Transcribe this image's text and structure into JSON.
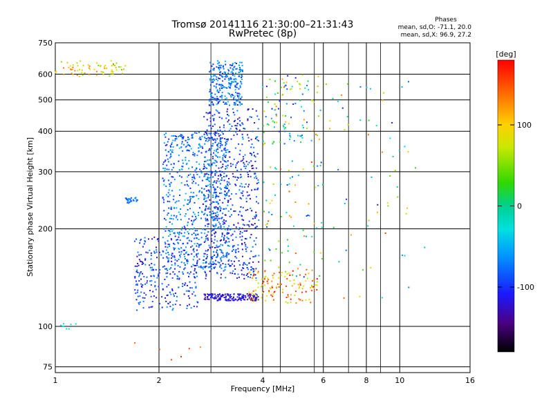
{
  "chart_data": {
    "type": "scatter",
    "title": "Tromsø 20141116 21:30:00–21:31:43",
    "subtitle": "RwPretec (8p)",
    "xlabel": "Frequency [MHz]",
    "ylabel": "Stationary phase Virtual Height [km]",
    "xscale": "log",
    "yscale": "log",
    "xlim": [
      1,
      16
    ],
    "ylim": [
      72,
      750
    ],
    "xticks": [
      "1",
      "2",
      "4",
      "6",
      "8",
      "10",
      "16"
    ],
    "xtick_values": [
      1,
      2,
      4,
      6,
      8,
      10,
      16
    ],
    "yticks": [
      "75",
      "100",
      "200",
      "300",
      "400",
      "500",
      "600",
      "750"
    ],
    "ytick_values": [
      75,
      100,
      200,
      300,
      400,
      500,
      600,
      750
    ],
    "grid": true,
    "colorbar": {
      "label": "[deg]",
      "range": [
        -180,
        180
      ],
      "ticks": [
        "100",
        "0",
        "-100"
      ],
      "tick_values": [
        100,
        0,
        -100
      ]
    },
    "stats": {
      "heading": "Phases",
      "line1": "mean, sd,O: -71.1, 20.0",
      "line2": "mean, sd,X: 96.9, 27.2"
    },
    "clusters": [
      {
        "x": [
          1.0,
          1.6
        ],
        "y": [
          590,
          660
        ],
        "n": 70,
        "phase": [
          40,
          140
        ]
      },
      {
        "x": [
          2.8,
          3.5
        ],
        "y": [
          480,
          660
        ],
        "n": 260,
        "phase": [
          -110,
          -40
        ]
      },
      {
        "x": [
          2.05,
          3.2
        ],
        "y": [
          150,
          400
        ],
        "n": 700,
        "phase": [
          -110,
          -40
        ]
      },
      {
        "x": [
          2.7,
          3.9
        ],
        "y": [
          140,
          470
        ],
        "n": 600,
        "phase": [
          -140,
          -60
        ]
      },
      {
        "x": [
          1.7,
          2.6
        ],
        "y": [
          112,
          190
        ],
        "n": 280,
        "phase": [
          -130,
          -60
        ]
      },
      {
        "x": [
          2.7,
          3.9
        ],
        "y": [
          120,
          126
        ],
        "n": 160,
        "phase": [
          -140,
          -100
        ]
      },
      {
        "x": [
          3.6,
          5.8
        ],
        "y": [
          118,
          150
        ],
        "n": 130,
        "phase": [
          60,
          180
        ]
      },
      {
        "x": [
          4.0,
          5.9
        ],
        "y": [
          360,
          600
        ],
        "n": 110,
        "phase": [
          -120,
          150
        ]
      },
      {
        "x": [
          4.0,
          6.0
        ],
        "y": [
          140,
          330
        ],
        "n": 80,
        "phase": [
          -110,
          160
        ]
      },
      {
        "x": [
          1.6,
          1.75
        ],
        "y": [
          240,
          250
        ],
        "n": 25,
        "phase": [
          -90,
          -60
        ]
      },
      {
        "x": [
          6.0,
          12.0
        ],
        "y": [
          120,
          600
        ],
        "n": 60,
        "phase": [
          -140,
          160
        ]
      },
      {
        "x": [
          1.0,
          1.15
        ],
        "y": [
          98,
          102
        ],
        "n": 8,
        "phase": [
          -40,
          -20
        ]
      },
      {
        "x": [
          1.6,
          2.7
        ],
        "y": [
          76,
          92
        ],
        "n": 6,
        "phase": [
          100,
          170
        ]
      }
    ]
  }
}
